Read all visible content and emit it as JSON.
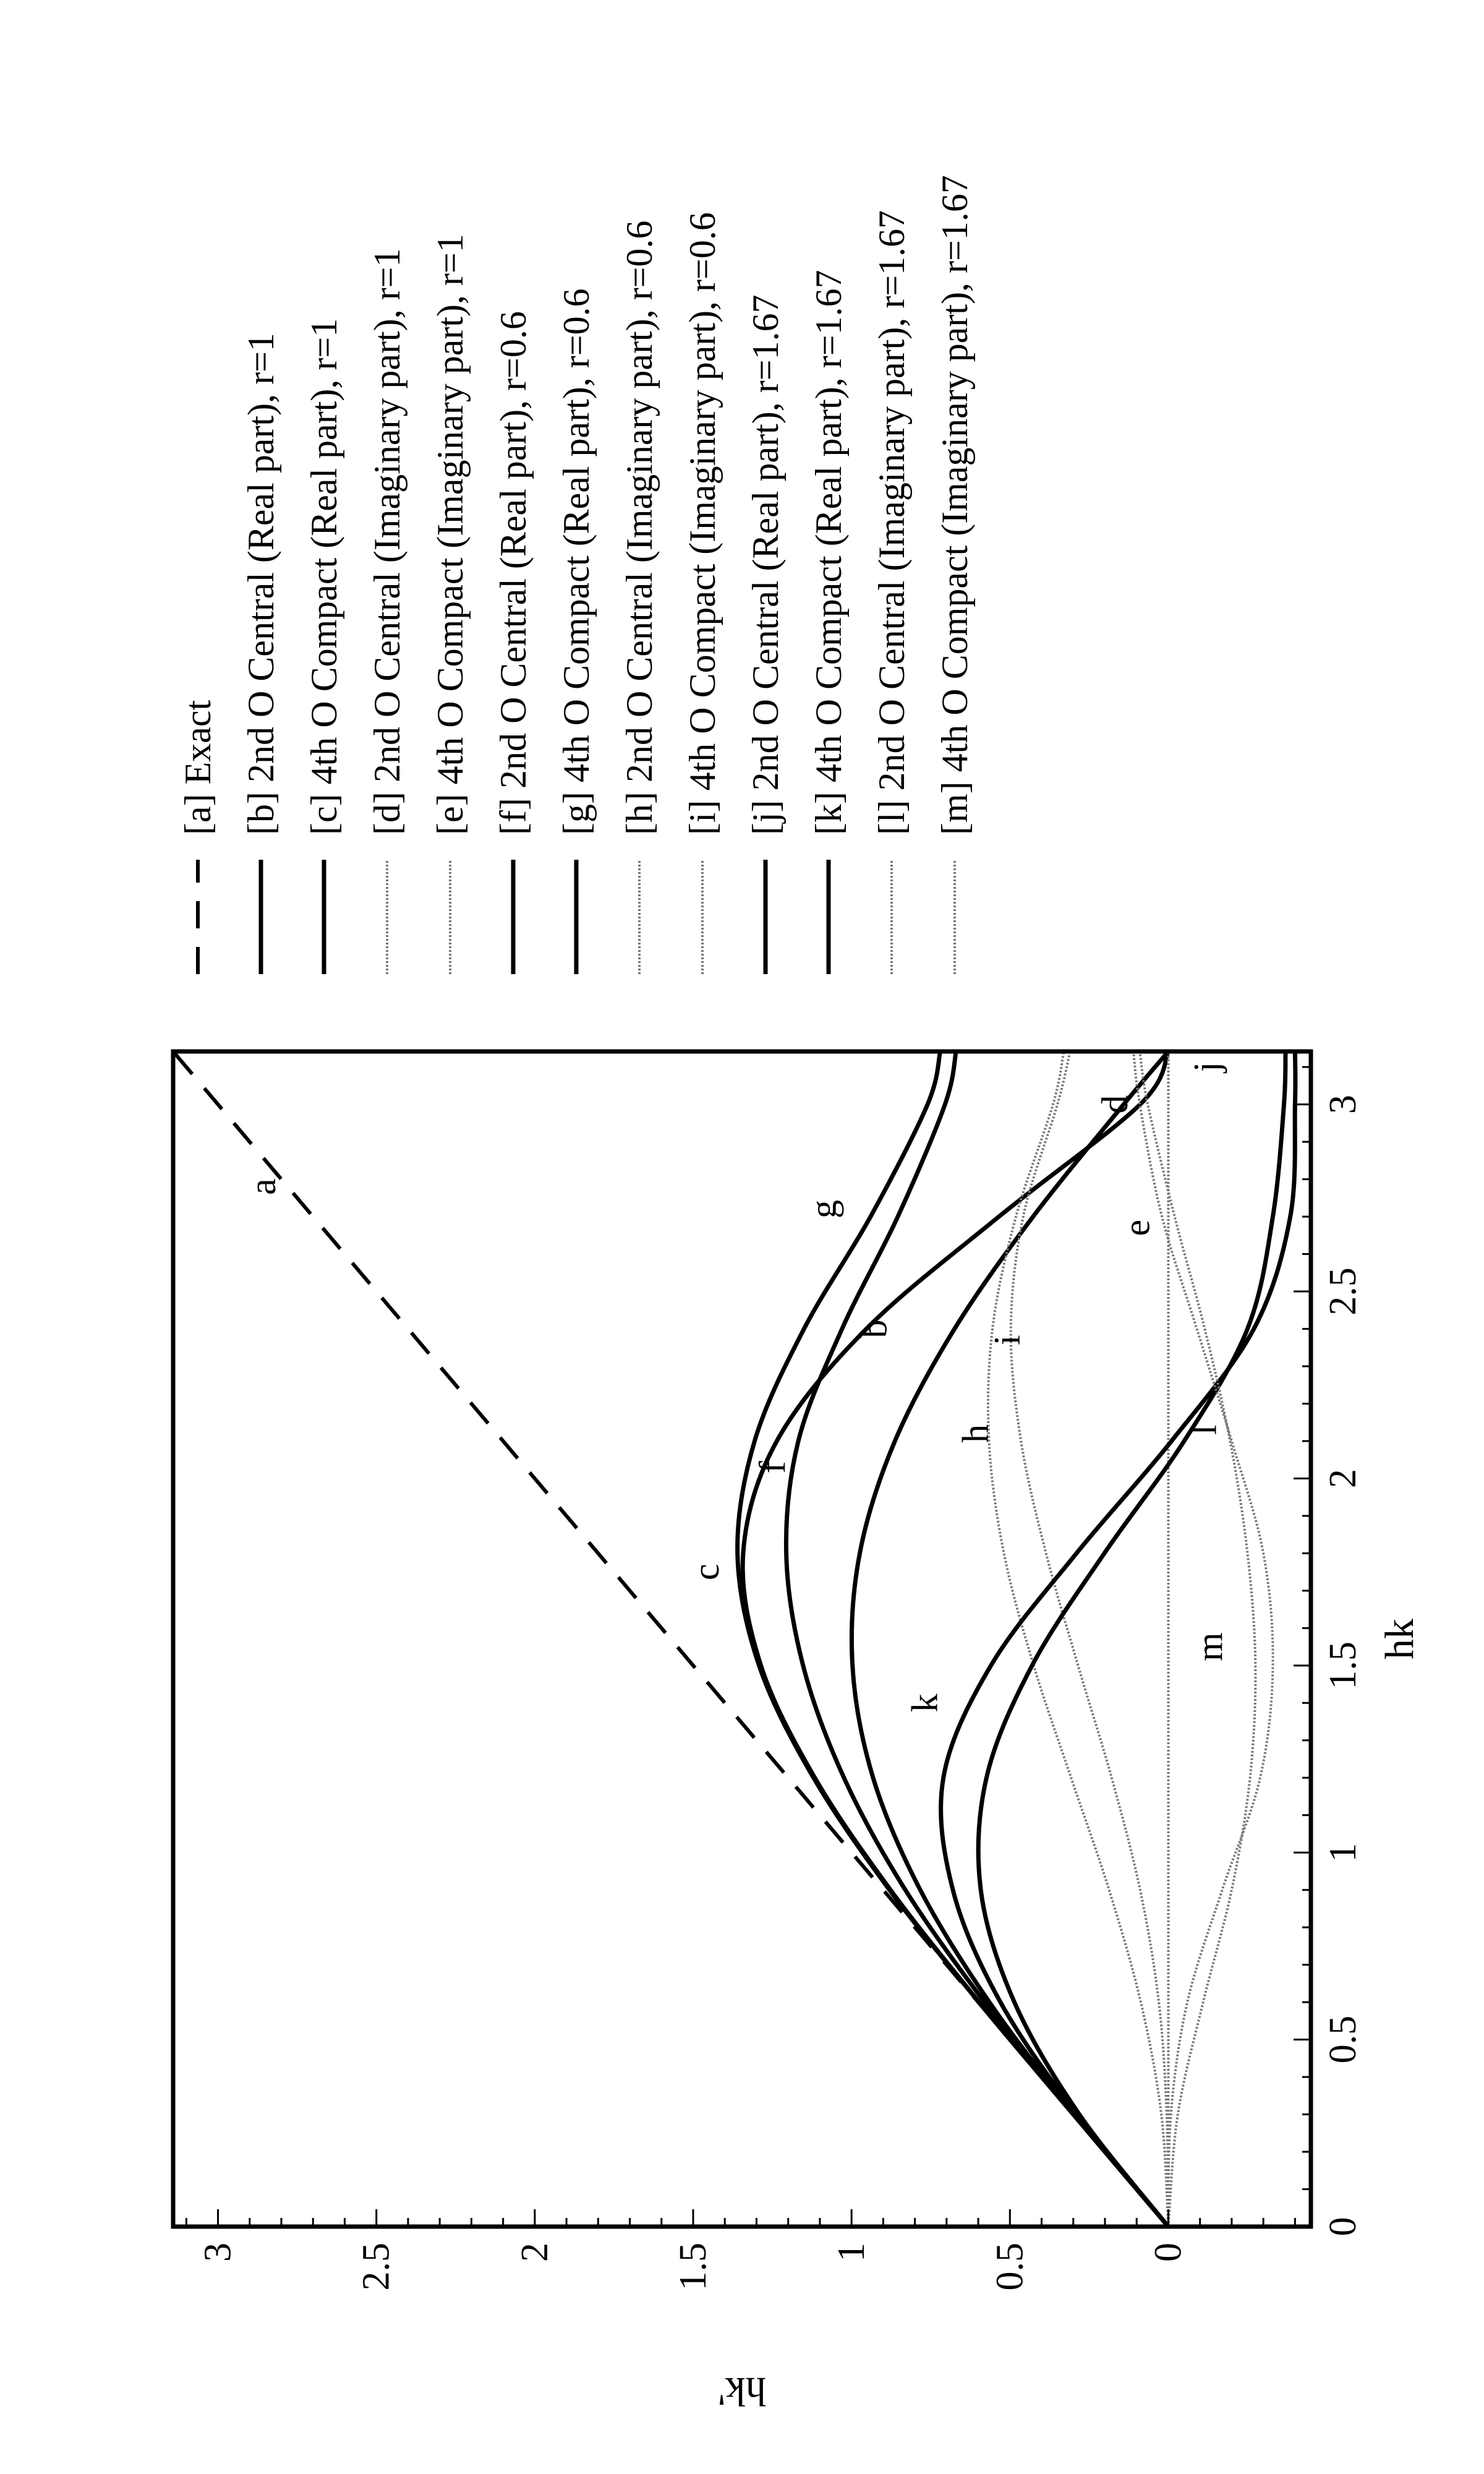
{
  "chart_data": {
    "type": "line",
    "title": "",
    "xlabel": "hk",
    "ylabel": "hk'",
    "xlim": [
      0,
      3.1416
    ],
    "ylim": [
      -0.45,
      3.1416
    ],
    "x_ticks": [
      "0",
      "0.5",
      "1",
      "1.5",
      "2",
      "2.5",
      "3"
    ],
    "y_ticks": [
      "0",
      "0.5",
      "1",
      "1.5",
      "2",
      "2.5",
      "3"
    ],
    "grid": false,
    "legend_position": "right",
    "orientation": "figure rotated 90 degrees counter-clockwise",
    "series": [
      {
        "tag": "a",
        "name": "[a] Exact",
        "style": "dashed",
        "x": [
          0,
          0.5,
          1.0,
          1.5,
          2.0,
          2.5,
          3.0,
          3.1416
        ],
        "y": [
          0,
          0.5,
          1.0,
          1.5,
          2.0,
          2.5,
          3.0,
          3.1416
        ]
      },
      {
        "tag": "b",
        "name": "[b] 2nd O Central (Real part), r=1",
        "style": "solid",
        "x": [
          0,
          0.3,
          0.6,
          0.9,
          1.2,
          1.5,
          1.8,
          2.1,
          2.4,
          2.7,
          3.0,
          3.1416
        ],
        "y": [
          0,
          0.296,
          0.565,
          0.783,
          0.932,
          0.997,
          0.974,
          0.863,
          0.675,
          0.427,
          0.141,
          0
        ]
      },
      {
        "tag": "c",
        "name": "[c] 4th O Compact (Real part), r=1",
        "style": "solid",
        "x": [
          0,
          0.3,
          0.6,
          0.9,
          1.2,
          1.5,
          1.8,
          2.1,
          2.4,
          2.7,
          3.0,
          3.1416
        ],
        "y": [
          0,
          0.3,
          0.597,
          0.877,
          1.116,
          1.286,
          1.342,
          1.236,
          0.953,
          0.535,
          0.089,
          0
        ]
      },
      {
        "tag": "d",
        "name": "[d] 2nd O Central (Imaginary part), r=1",
        "style": "dotted",
        "x": [
          0,
          0.5,
          1.0,
          1.5,
          2.0,
          2.5,
          3.0,
          3.1416
        ],
        "y": [
          0,
          0,
          0,
          0,
          0,
          0,
          0,
          0
        ]
      },
      {
        "tag": "e",
        "name": "[e] 4th O Compact (Imaginary part), r=1",
        "style": "dotted",
        "x": [
          0,
          0.5,
          1.0,
          1.5,
          2.0,
          2.5,
          3.0,
          3.1416
        ],
        "y": [
          0,
          0,
          0,
          0,
          0,
          0,
          0,
          0
        ]
      },
      {
        "tag": "f",
        "name": "[f] 2nd O Central (Real part), r=0.6",
        "style": "solid",
        "x": [
          0,
          0.3,
          0.6,
          0.9,
          1.2,
          1.5,
          1.8,
          2.1,
          2.4,
          2.7,
          3.0,
          3.1416
        ],
        "y": [
          0,
          0.298,
          0.58,
          0.83,
          1.024,
          1.153,
          1.206,
          1.168,
          1.03,
          0.854,
          0.705,
          0.67
        ]
      },
      {
        "tag": "g",
        "name": "[g] 4th O Compact (Real part), r=0.6",
        "style": "solid",
        "x": [
          0,
          0.3,
          0.6,
          0.9,
          1.2,
          1.5,
          1.8,
          2.1,
          2.4,
          2.7,
          3.0,
          3.1416
        ],
        "y": [
          0,
          0.3,
          0.598,
          0.88,
          1.12,
          1.292,
          1.36,
          1.306,
          1.15,
          0.94,
          0.76,
          0.72
        ]
      },
      {
        "tag": "h",
        "name": "[h] 2nd O Central (Imaginary part), r=0.6",
        "style": "dotted",
        "x": [
          0,
          0.3,
          0.6,
          0.9,
          1.2,
          1.5,
          1.8,
          2.1,
          2.4,
          2.7,
          3.0,
          3.1416
        ],
        "y": [
          0,
          0.022,
          0.087,
          0.187,
          0.307,
          0.425,
          0.519,
          0.566,
          0.555,
          0.481,
          0.364,
          0.33
        ]
      },
      {
        "tag": "i",
        "name": "[i] 4th O Compact (Imaginary part), r=0.6",
        "style": "dotted",
        "x": [
          0,
          0.3,
          0.6,
          0.9,
          1.2,
          1.5,
          1.8,
          2.1,
          2.4,
          2.7,
          3.0,
          3.1416
        ],
        "y": [
          0,
          0.005,
          0.03,
          0.089,
          0.179,
          0.285,
          0.386,
          0.465,
          0.497,
          0.458,
          0.35,
          0.31
        ]
      },
      {
        "tag": "j",
        "name": "[j] 2nd O Central (Real part), r=1.67",
        "style": "solid",
        "x": [
          0,
          0.3,
          0.6,
          0.9,
          1.2,
          1.5,
          1.8,
          2.1,
          2.4,
          2.7,
          3.0,
          3.1416
        ],
        "y": [
          0,
          0.281,
          0.486,
          0.592,
          0.574,
          0.43,
          0.202,
          -0.05,
          -0.25,
          -0.33,
          -0.365,
          -0.37
        ]
      },
      {
        "tag": "k",
        "name": "[k] 4th O Compact (Real part), r=1.67",
        "style": "solid",
        "x": [
          0,
          0.3,
          0.6,
          0.9,
          1.2,
          1.5,
          1.8,
          2.1,
          2.4,
          2.7,
          3.0,
          3.1416
        ],
        "y": [
          0,
          0.289,
          0.53,
          0.68,
          0.71,
          0.56,
          0.29,
          -0.01,
          -0.27,
          -0.385,
          -0.4,
          -0.4
        ]
      },
      {
        "tag": "l",
        "name": "[l] 2nd O Central (Imaginary part), r=1.67",
        "style": "dotted",
        "x": [
          0,
          0.3,
          0.6,
          0.9,
          1.2,
          1.5,
          1.8,
          2.1,
          2.4,
          2.7,
          3.0,
          3.1416
        ],
        "y": [
          0,
          -0.03,
          -0.11,
          -0.2,
          -0.258,
          -0.275,
          -0.25,
          -0.195,
          -0.115,
          -0.02,
          0.065,
          0.09
        ]
      },
      {
        "tag": "m",
        "name": "[m] 4th O Compact (Imaginary part), r=1.67",
        "style": "dotted",
        "x": [
          0,
          0.3,
          0.6,
          0.9,
          1.2,
          1.5,
          1.8,
          2.1,
          2.4,
          2.7,
          3.0,
          3.1416
        ],
        "y": [
          0,
          -0.008,
          -0.06,
          -0.17,
          -0.29,
          -0.33,
          -0.3,
          -0.2,
          -0.09,
          0.02,
          0.09,
          0.11
        ]
      }
    ],
    "annotations": [
      {
        "label": "a",
        "x": 2.78,
        "y": 2.82
      },
      {
        "label": "b",
        "x": 2.4,
        "y": 0.89
      },
      {
        "label": "c",
        "x": 1.75,
        "y": 1.42
      },
      {
        "label": "d",
        "x": 3.0,
        "y": 0.13
      },
      {
        "label": "e",
        "x": 2.67,
        "y": 0.06
      },
      {
        "label": "f",
        "x": 2.03,
        "y": 1.21
      },
      {
        "label": "g",
        "x": 2.72,
        "y": 1.05
      },
      {
        "label": "h",
        "x": 2.12,
        "y": 0.57
      },
      {
        "label": "i",
        "x": 2.37,
        "y": 0.47
      },
      {
        "label": "j",
        "x": 3.1,
        "y": -0.16
      },
      {
        "label": "k",
        "x": 1.4,
        "y": 0.73
      },
      {
        "label": "l",
        "x": 2.13,
        "y": -0.15
      },
      {
        "label": "m",
        "x": 1.55,
        "y": -0.17
      }
    ]
  }
}
